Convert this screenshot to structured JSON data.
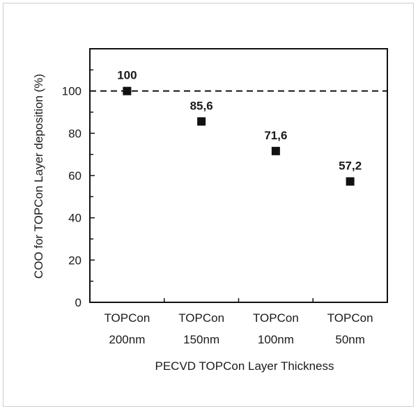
{
  "chart_data": {
    "type": "scatter",
    "categories": [
      "TOPCon 200nm",
      "TOPCon 150nm",
      "TOPCon 100nm",
      "TOPCon 50nm"
    ],
    "category_lines": [
      [
        "TOPCon",
        "200nm"
      ],
      [
        "TOPCon",
        "150nm"
      ],
      [
        "TOPCon",
        "100nm"
      ],
      [
        "TOPCon",
        "50nm"
      ]
    ],
    "values": [
      100,
      85.6,
      71.6,
      57.2
    ],
    "data_labels": [
      "100",
      "85,6",
      "71,6",
      "57,2"
    ],
    "xlabel": "PECVD TOPCon Layer Thickness",
    "ylabel": "COO for TOPCon Layer deposition (%)",
    "ylim": [
      0,
      120
    ],
    "yticks": [
      0,
      20,
      40,
      60,
      80,
      100
    ],
    "reference_line": {
      "y": 100,
      "style": "dashed"
    },
    "grid": false,
    "legend": "none",
    "marker": "square",
    "color": "#111111"
  }
}
